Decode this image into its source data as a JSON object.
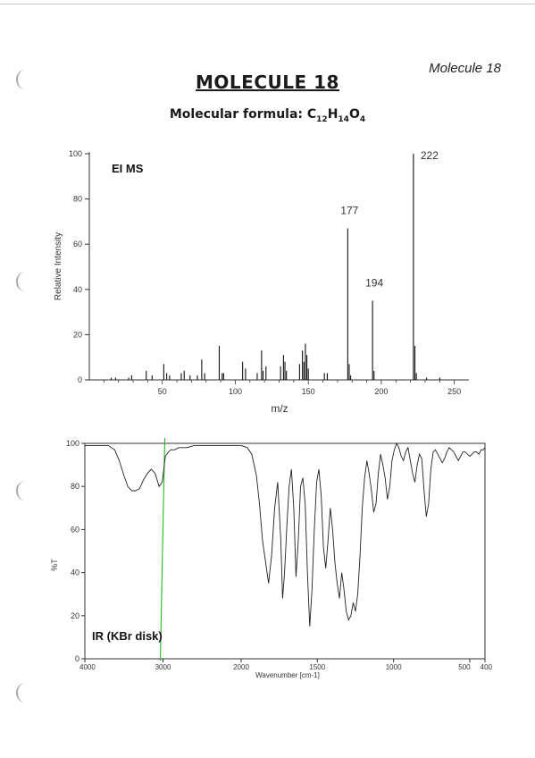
{
  "page": {
    "corner_label": "Molecule 18",
    "title": "MOLECULE 18",
    "formula_prefix": "Molecular formula: ",
    "formula_parts": [
      {
        "t": "C",
        "sub": false
      },
      {
        "t": "12",
        "sub": true
      },
      {
        "t": "H",
        "sub": false
      },
      {
        "t": "14",
        "sub": true
      },
      {
        "t": "O",
        "sub": false
      },
      {
        "t": "4",
        "sub": true
      }
    ]
  },
  "chart_data": [
    {
      "type": "bar",
      "title": "EI MS",
      "xlabel": "m/z",
      "ylabel": "Relative Intensity",
      "xlim": [
        0,
        260
      ],
      "ylim": [
        0,
        100
      ],
      "x_ticks": [
        50,
        100,
        150,
        200,
        250
      ],
      "y_ticks": [
        0,
        20,
        40,
        60,
        80,
        100
      ],
      "grid": false,
      "peaks": [
        {
          "mz": 15,
          "value": 1
        },
        {
          "mz": 18,
          "value": 1
        },
        {
          "mz": 27,
          "value": 1
        },
        {
          "mz": 29,
          "value": 2
        },
        {
          "mz": 39,
          "value": 4
        },
        {
          "mz": 43,
          "value": 2
        },
        {
          "mz": 51,
          "value": 7
        },
        {
          "mz": 53,
          "value": 3
        },
        {
          "mz": 55,
          "value": 2
        },
        {
          "mz": 63,
          "value": 3
        },
        {
          "mz": 65,
          "value": 4
        },
        {
          "mz": 69,
          "value": 2
        },
        {
          "mz": 74,
          "value": 2
        },
        {
          "mz": 77,
          "value": 9
        },
        {
          "mz": 79,
          "value": 3
        },
        {
          "mz": 89,
          "value": 15
        },
        {
          "mz": 91,
          "value": 3
        },
        {
          "mz": 92,
          "value": 3
        },
        {
          "mz": 105,
          "value": 8
        },
        {
          "mz": 107,
          "value": 5
        },
        {
          "mz": 115,
          "value": 3
        },
        {
          "mz": 118,
          "value": 13
        },
        {
          "mz": 119,
          "value": 4
        },
        {
          "mz": 121,
          "value": 6
        },
        {
          "mz": 131,
          "value": 6
        },
        {
          "mz": 133,
          "value": 11
        },
        {
          "mz": 134,
          "value": 8
        },
        {
          "mz": 135,
          "value": 4
        },
        {
          "mz": 144,
          "value": 7
        },
        {
          "mz": 146,
          "value": 13
        },
        {
          "mz": 147,
          "value": 8
        },
        {
          "mz": 148,
          "value": 16
        },
        {
          "mz": 149,
          "value": 11
        },
        {
          "mz": 150,
          "value": 5
        },
        {
          "mz": 161,
          "value": 3
        },
        {
          "mz": 163,
          "value": 3
        },
        {
          "mz": 177,
          "value": 67
        },
        {
          "mz": 178,
          "value": 7
        },
        {
          "mz": 179,
          "value": 2
        },
        {
          "mz": 194,
          "value": 35
        },
        {
          "mz": 195,
          "value": 4
        },
        {
          "mz": 222,
          "value": 100
        },
        {
          "mz": 223,
          "value": 15
        },
        {
          "mz": 224,
          "value": 3
        },
        {
          "mz": 231,
          "value": 1
        },
        {
          "mz": 240,
          "value": 1
        }
      ],
      "labels": [
        {
          "mz": 177,
          "text": "177"
        },
        {
          "mz": 194,
          "text": "194"
        },
        {
          "mz": 222,
          "text": "222"
        }
      ]
    },
    {
      "type": "line",
      "title": "IR (KBr disk)",
      "xlabel": "Wavenumber [cm-1]",
      "ylabel": "%T",
      "xlim": [
        4000,
        400
      ],
      "ylim": [
        0,
        100
      ],
      "x_ticks": [
        {
          "value": 4000,
          "label": "4000"
        },
        {
          "value": 3000,
          "label": "3000"
        },
        {
          "value": 2000,
          "label": "2000"
        },
        {
          "value": 1500,
          "label": "1500"
        },
        {
          "value": 1000,
          "label": "1000"
        },
        {
          "value": 500,
          "label": "500"
        },
        {
          "value": 400,
          "label": "400"
        }
      ],
      "y_ticks": [
        0,
        20,
        40,
        60,
        80,
        100
      ],
      "grid": false,
      "marker_line_wavenumber": 3000,
      "marker_color": "#22bb22",
      "series": [
        {
          "x": [
            4000,
            3900,
            3800,
            3700,
            3620,
            3560,
            3500,
            3450,
            3400,
            3350,
            3300,
            3250,
            3200,
            3150,
            3100,
            3050,
            3010,
            2990,
            2970,
            2950,
            2930,
            2900,
            2850,
            2800,
            2700,
            2600,
            2500,
            2400,
            2300,
            2200,
            2100,
            2000,
            1960,
            1930,
            1900,
            1880,
            1860,
            1840,
            1820,
            1800,
            1780,
            1760,
            1740,
            1728,
            1715,
            1700,
            1685,
            1670,
            1655,
            1640,
            1625,
            1610,
            1595,
            1580,
            1565,
            1550,
            1535,
            1520,
            1505,
            1490,
            1475,
            1460,
            1445,
            1430,
            1415,
            1400,
            1385,
            1370,
            1355,
            1340,
            1325,
            1310,
            1295,
            1280,
            1265,
            1250,
            1235,
            1220,
            1205,
            1190,
            1175,
            1160,
            1145,
            1130,
            1115,
            1100,
            1085,
            1070,
            1055,
            1040,
            1025,
            1010,
            995,
            980,
            965,
            950,
            935,
            920,
            905,
            890,
            875,
            860,
            845,
            830,
            815,
            800,
            785,
            770,
            755,
            740,
            725,
            710,
            695,
            680,
            665,
            650,
            635,
            620,
            605,
            590,
            575,
            560,
            545,
            530,
            515,
            500,
            485,
            470,
            455,
            440,
            425,
            410,
            400
          ],
          "y": [
            99,
            99,
            99,
            99,
            97,
            92,
            85,
            80,
            78,
            78,
            79,
            83,
            86,
            88,
            86,
            80,
            82,
            88,
            94,
            95,
            96,
            97,
            97,
            98,
            98,
            99,
            99,
            99,
            99,
            99,
            99,
            99,
            98,
            95,
            85,
            72,
            55,
            45,
            35,
            48,
            70,
            82,
            55,
            28,
            40,
            62,
            80,
            88,
            70,
            38,
            55,
            80,
            84,
            72,
            40,
            15,
            32,
            60,
            82,
            88,
            76,
            52,
            42,
            55,
            70,
            60,
            45,
            35,
            28,
            40,
            32,
            22,
            18,
            20,
            26,
            22,
            30,
            48,
            70,
            84,
            92,
            86,
            78,
            68,
            72,
            86,
            95,
            90,
            84,
            74,
            80,
            92,
            97,
            100,
            98,
            94,
            92,
            96,
            98,
            92,
            86,
            82,
            90,
            95,
            93,
            78,
            66,
            72,
            88,
            96,
            97,
            95,
            93,
            91,
            93,
            96,
            98,
            97,
            96,
            94,
            92,
            94,
            96,
            96,
            95,
            94,
            95,
            96,
            96,
            95,
            97,
            97,
            98
          ]
        }
      ]
    }
  ]
}
